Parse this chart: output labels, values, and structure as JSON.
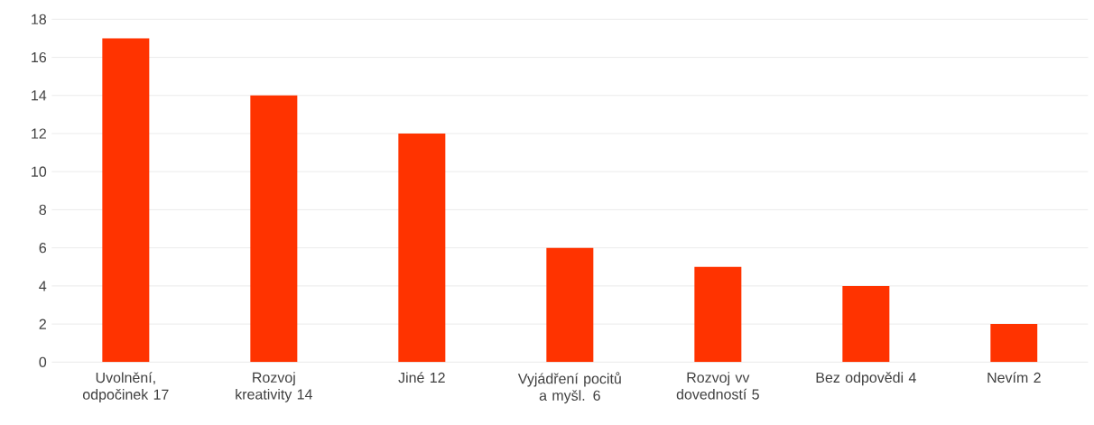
{
  "chart_data": {
    "type": "bar",
    "categories": [
      "Uvolnění, odpočinek 17",
      "Rozvoj kreativity 14",
      "Jiné 12",
      "Vyjádření pocitů a myšl. 6",
      "Rozvoj vv dovedností 5",
      "Bez odpovědi 4",
      "Nevím 2"
    ],
    "values": [
      17,
      14,
      12,
      6,
      5,
      4,
      2
    ],
    "color": "#ff3300",
    "ylim": [
      0,
      18
    ],
    "yticks": [
      0,
      2,
      4,
      6,
      8,
      10,
      12,
      14,
      16,
      18
    ],
    "grid": "y"
  }
}
